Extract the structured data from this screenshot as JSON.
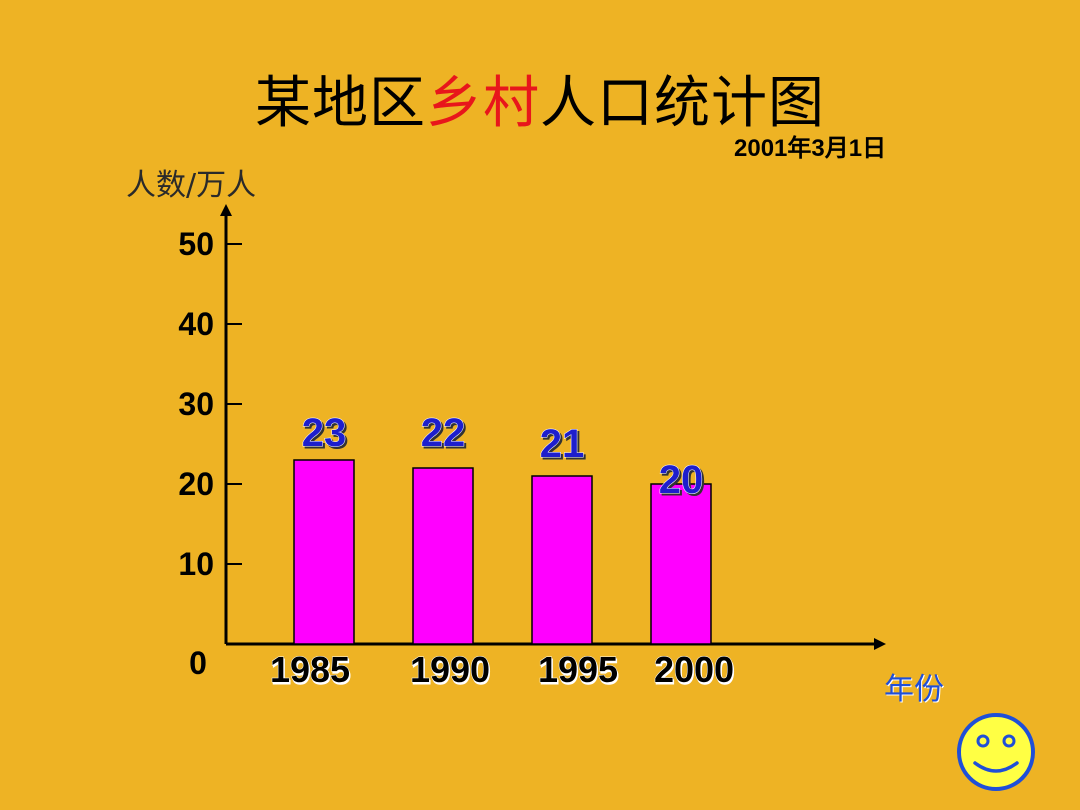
{
  "title": {
    "prefix": "某地区",
    "highlight": "乡村",
    "suffix": "人口统计图"
  },
  "date": "2001年3月1日",
  "chart_data": {
    "type": "bar",
    "categories": [
      "1985",
      "1990",
      "1995",
      "2000"
    ],
    "values": [
      23,
      22,
      21,
      20
    ],
    "ylabel": "人数/万人",
    "xlabel": "年份",
    "ylim": [
      0,
      50
    ],
    "yticks": [
      0,
      10,
      20,
      30,
      40,
      50
    ],
    "grid": false,
    "bar_color": "#FF00FF",
    "data_label_color": "#1E1ECC"
  },
  "colors": {
    "background": "#EEB324",
    "title_highlight": "#E8161B",
    "smiley_face": "#FFFF44",
    "smiley_outline": "#1F4FD8"
  },
  "icons": {
    "corner": "smiley-icon"
  }
}
